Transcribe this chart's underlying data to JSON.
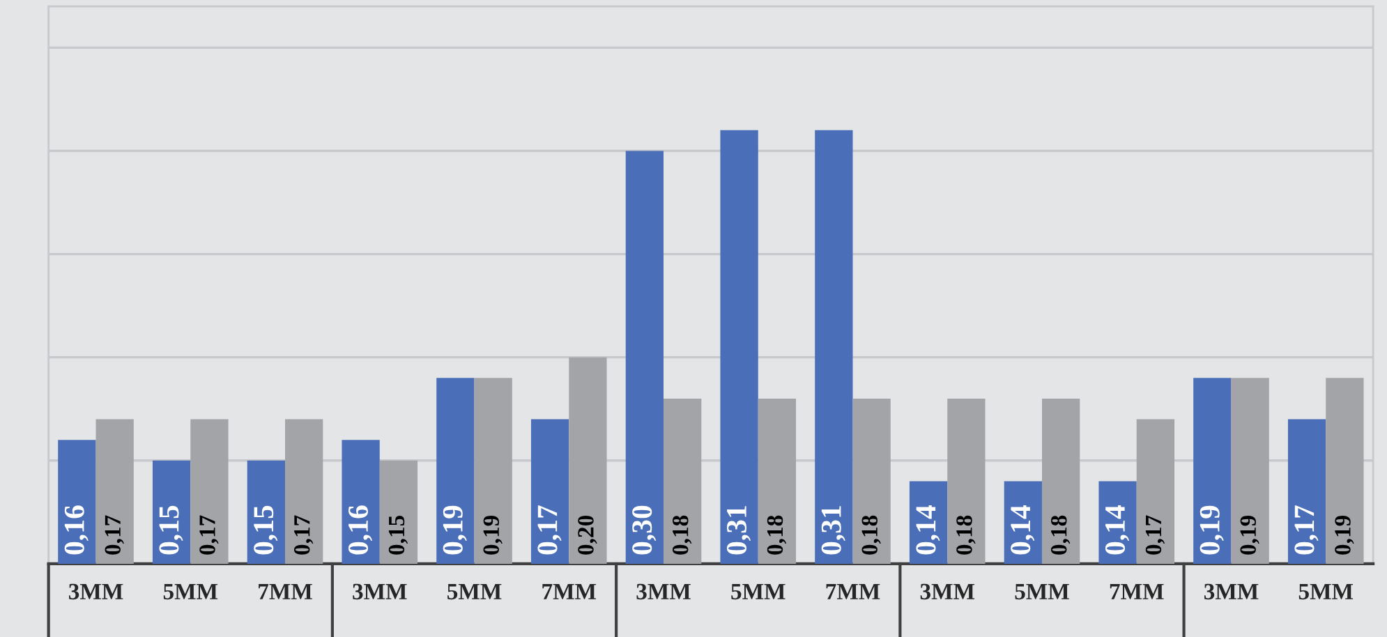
{
  "chart_data": {
    "type": "bar",
    "categories": [
      "3MM",
      "5MM",
      "7MM",
      "3MM",
      "5MM",
      "7MM",
      "3MM",
      "5MM",
      "7MM",
      "3MM",
      "5MM",
      "7MM",
      "3MM",
      "5MM"
    ],
    "series": [
      {
        "color": "#4a6fb8",
        "values": [
          0.16,
          0.15,
          0.15,
          0.16,
          0.19,
          0.17,
          0.3,
          0.31,
          0.31,
          0.14,
          0.14,
          0.14,
          0.19,
          0.17
        ],
        "value_labels": [
          "0,16",
          "0,15",
          "0,15",
          "0,16",
          "0,19",
          "0,17",
          "0,30",
          "0,31",
          "0,31",
          "0,14",
          "0,14",
          "0,14",
          "0,19",
          "0,17"
        ]
      },
      {
        "color": "#a3a4a8",
        "values": [
          0.17,
          0.17,
          0.17,
          0.15,
          0.19,
          0.2,
          0.18,
          0.18,
          0.18,
          0.18,
          0.18,
          0.17,
          0.19,
          0.19
        ],
        "value_labels": [
          "0,17",
          "0,17",
          "0,17",
          "0,15",
          "0,19",
          "0,20",
          "0,18",
          "0,18",
          "0,18",
          "0,18",
          "0,18",
          "0,17",
          "0,19",
          "0,19"
        ]
      }
    ],
    "ylim": [
      0.1,
      0.37
    ],
    "yticks": [
      {
        "value": 0.1,
        "label": null
      },
      {
        "value": 0.15,
        "label": null
      },
      {
        "value": 0.2,
        "label": null
      },
      {
        "value": 0.25,
        "label": null
      },
      {
        "value": 0.3,
        "label": null
      },
      {
        "value": 0.35,
        "label": null
      }
    ],
    "grid": "y",
    "tick_labels": "x",
    "legend": false
  }
}
